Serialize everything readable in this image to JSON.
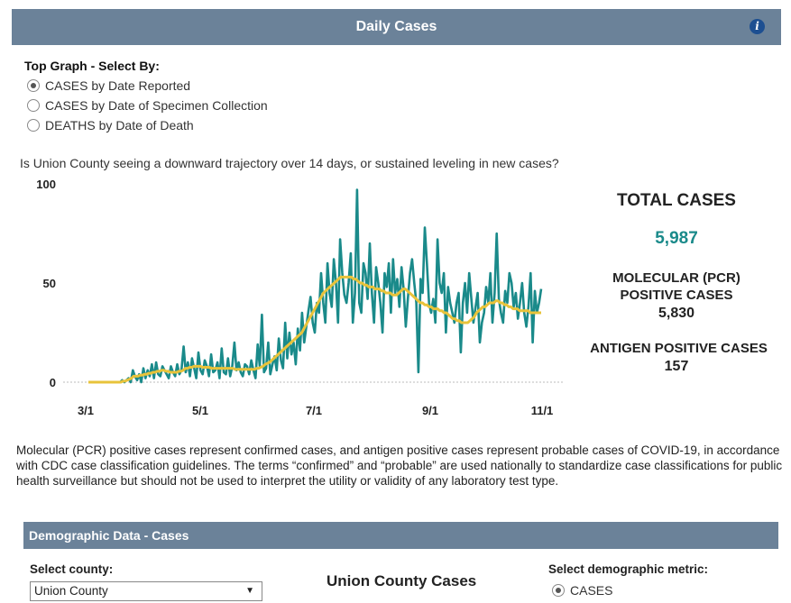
{
  "header": {
    "title": "Daily  Cases",
    "info_icon": "i"
  },
  "selector": {
    "title": "Top Graph - Select By:",
    "options": [
      {
        "label": "CASES by Date Reported",
        "selected": true
      },
      {
        "label": "CASES by Date of Specimen Collection",
        "selected": false
      },
      {
        "label": "DEATHS by Date of Death",
        "selected": false
      }
    ]
  },
  "question": "Is Union County seeing a downward trajectory over 14 days, or sustained leveling in new cases?",
  "chart_data": {
    "type": "line",
    "x_tick_labels": [
      "3/1",
      "5/1",
      "7/1",
      "9/1",
      "11/1"
    ],
    "y_tick_labels": [
      "100",
      "50",
      "0"
    ],
    "ylim": [
      0,
      100
    ],
    "x_range": [
      "3/1",
      "11/1"
    ],
    "series": [
      {
        "color": "#1a8a8a",
        "values": [
          0,
          0,
          0,
          0,
          0,
          0,
          0,
          0,
          0,
          0,
          0,
          0,
          0,
          0,
          0,
          0,
          1,
          0,
          1,
          2,
          0,
          6,
          3,
          1,
          4,
          0,
          7,
          2,
          6,
          3,
          9,
          2,
          10,
          4,
          3,
          8,
          6,
          4,
          2,
          8,
          5,
          3,
          9,
          4,
          6,
          18,
          5,
          10,
          3,
          12,
          7,
          2,
          15,
          6,
          4,
          11,
          8,
          3,
          14,
          5,
          6,
          10,
          2,
          17,
          5,
          4,
          12,
          3,
          8,
          20,
          6,
          10,
          5,
          3,
          9,
          8,
          4,
          11,
          6,
          2,
          19,
          8,
          34,
          5,
          7,
          20,
          4,
          9,
          13,
          6,
          22,
          11,
          7,
          30,
          12,
          25,
          14,
          20,
          9,
          27,
          16,
          35,
          20,
          28,
          36,
          43,
          30,
          25,
          40,
          35,
          55,
          40,
          30,
          60,
          45,
          38,
          62,
          50,
          30,
          72,
          55,
          44,
          40,
          50,
          65,
          30,
          45,
          97,
          40,
          35,
          60,
          55,
          42,
          70,
          45,
          30,
          58,
          50,
          40,
          25,
          55,
          48,
          60,
          35,
          62,
          45,
          52,
          38,
          58,
          47,
          28,
          42,
          55,
          62,
          50,
          40,
          5,
          52,
          45,
          78,
          60,
          40,
          35,
          42,
          30,
          72,
          50,
          45,
          55,
          25,
          48,
          40,
          35,
          30,
          40,
          45,
          15,
          40,
          50,
          35,
          55,
          42,
          30,
          38,
          45,
          20,
          30,
          35,
          48,
          40,
          55,
          30,
          45,
          75,
          42,
          35,
          30,
          46,
          40,
          55,
          50,
          38,
          45,
          32,
          40,
          50,
          35,
          28,
          38,
          55,
          20,
          46,
          35,
          40,
          47
        ]
      },
      {
        "color": "#e8c33a",
        "values": [
          0,
          0,
          0,
          0,
          0,
          0,
          0,
          0,
          0,
          0,
          0,
          0,
          0,
          0,
          0,
          0,
          0.5,
          0.5,
          1,
          1.5,
          2,
          3,
          3,
          3,
          3.5,
          3.5,
          4,
          4,
          4.5,
          4.5,
          5,
          5,
          5.5,
          5.5,
          6,
          6,
          5.5,
          5.5,
          5,
          5,
          5,
          5,
          5.5,
          5.5,
          6,
          7,
          7,
          7.5,
          7.5,
          8,
          8,
          8,
          8,
          7.5,
          7.5,
          7.5,
          7.5,
          7,
          7,
          7,
          7,
          7,
          7,
          7,
          7,
          7,
          7,
          7,
          6.5,
          6.5,
          6.5,
          6.5,
          6.5,
          6.5,
          6.5,
          6.5,
          6.5,
          6.5,
          7,
          7,
          7.5,
          8,
          9,
          9.5,
          10,
          11,
          12,
          13,
          14,
          15,
          16,
          17,
          18,
          19,
          20,
          21,
          22,
          23,
          24,
          25,
          27,
          29,
          31,
          33,
          35,
          37,
          39,
          41,
          43,
          45,
          46,
          47,
          48,
          49,
          50,
          51,
          52,
          53,
          53,
          53,
          53,
          53,
          53,
          52,
          52,
          51,
          50,
          50,
          49,
          49,
          48,
          48,
          48,
          47,
          47,
          47,
          46,
          46,
          45,
          45,
          45,
          44,
          44,
          44,
          45,
          46,
          47,
          47,
          46,
          45,
          44,
          43,
          42,
          41,
          40,
          40,
          39,
          39,
          38,
          38,
          37,
          37,
          37,
          36,
          36,
          35,
          35,
          34,
          33,
          32,
          32,
          31,
          31,
          30,
          30,
          30,
          30,
          31,
          32,
          33,
          35,
          36,
          37,
          38,
          38,
          39,
          40,
          40,
          40,
          41,
          41,
          40,
          40,
          39,
          39,
          38,
          38,
          37,
          37,
          37,
          36,
          36,
          36,
          36,
          36,
          35,
          35,
          35,
          35,
          35,
          35
        ]
      }
    ]
  },
  "kpis": {
    "total_label": "TOTAL CASES",
    "total_value": "5,987",
    "total_color": "#1a8a8a",
    "pcr_label_1": "MOLECULAR (PCR)",
    "pcr_label_2": "POSITIVE CASES",
    "pcr_value": "5,830",
    "antigen_label": "ANTIGEN POSITIVE CASES",
    "antigen_value": "157"
  },
  "note": "Molecular (PCR) positive cases represent confirmed cases, and antigen positive cases represent probable cases of COVID-19, in accordance with CDC case classification guidelines. The terms “confirmed” and “probable” are used nationally to standardize case classifications for public health surveillance but should not be used to interpret the utility or validity of any laboratory test type.",
  "demographics": {
    "title": "Demographic Data  -  Cases",
    "county_label": "Select county:",
    "county_value": "Union County",
    "chart_title": "Union County Cases",
    "metric_label": "Select demographic metric:",
    "metric_option": "CASES"
  }
}
